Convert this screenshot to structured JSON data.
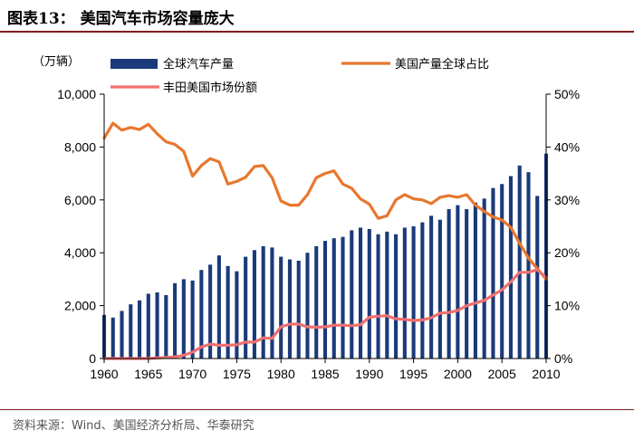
{
  "figure": {
    "title": "图表13：  美国汽车市场容量庞大",
    "source": "资料来源：Wind、美国经济分析局、华泰研究"
  },
  "colors": {
    "bar": "#1a3a7a",
    "share_us": "#e8772e",
    "share_toyota": "#ef7070",
    "axis": "#000000",
    "rule": "#7f1d1d"
  },
  "chart_data": {
    "type": "bar+line",
    "ylabel_left": "（万辆）",
    "left_ticks": [
      "0",
      "2,000",
      "4,000",
      "6,000",
      "8,000",
      "10,000"
    ],
    "right_ticks": [
      "0%",
      "10%",
      "20%",
      "30%",
      "40%",
      "50%"
    ],
    "x_ticks": [
      "1960",
      "1965",
      "1970",
      "1975",
      "1980",
      "1985",
      "1990",
      "1995",
      "2000",
      "2005",
      "2010"
    ],
    "ylim_left": [
      0,
      10000
    ],
    "ylim_right": [
      0,
      0.5
    ],
    "xlim": [
      1960,
      2010
    ],
    "x": [
      1960,
      1961,
      1962,
      1963,
      1964,
      1965,
      1966,
      1967,
      1968,
      1969,
      1970,
      1971,
      1972,
      1973,
      1974,
      1975,
      1976,
      1977,
      1978,
      1979,
      1980,
      1981,
      1982,
      1983,
      1984,
      1985,
      1986,
      1987,
      1988,
      1989,
      1990,
      1991,
      1992,
      1993,
      1994,
      1995,
      1996,
      1997,
      1998,
      1999,
      2000,
      2001,
      2002,
      2003,
      2004,
      2005,
      2006,
      2007,
      2008,
      2009,
      2010
    ],
    "series": [
      {
        "name": "全球汽车产量",
        "kind": "bar",
        "axis": "left",
        "values": [
          1650,
          1550,
          1800,
          2050,
          2200,
          2450,
          2500,
          2400,
          2850,
          3000,
          2950,
          3350,
          3550,
          3900,
          3500,
          3300,
          3850,
          4100,
          4250,
          4200,
          3850,
          3750,
          3700,
          4000,
          4250,
          4450,
          4550,
          4600,
          4850,
          4950,
          4900,
          4700,
          4800,
          4700,
          4950,
          5000,
          5150,
          5400,
          5250,
          5650,
          5800,
          5650,
          5900,
          6050,
          6450,
          6600,
          6900,
          7300,
          7050,
          6150,
          7750
        ]
      },
      {
        "name": "美国产量全球占比",
        "kind": "line",
        "axis": "right",
        "values": [
          0.417,
          0.445,
          0.432,
          0.437,
          0.433,
          0.443,
          0.425,
          0.41,
          0.405,
          0.392,
          0.345,
          0.365,
          0.378,
          0.372,
          0.33,
          0.335,
          0.343,
          0.363,
          0.365,
          0.342,
          0.298,
          0.29,
          0.29,
          0.31,
          0.342,
          0.35,
          0.355,
          0.33,
          0.322,
          0.302,
          0.292,
          0.265,
          0.27,
          0.3,
          0.31,
          0.302,
          0.3,
          0.293,
          0.305,
          0.308,
          0.305,
          0.31,
          0.29,
          0.278,
          0.268,
          0.262,
          0.248,
          0.218,
          0.19,
          0.17,
          0.15
        ]
      },
      {
        "name": "丰田美国市场份额",
        "kind": "line",
        "axis": "right",
        "values": [
          0.0,
          0.0,
          0.0,
          0.0,
          0.0,
          0.0,
          0.001,
          0.002,
          0.003,
          0.006,
          0.012,
          0.022,
          0.027,
          0.025,
          0.025,
          0.026,
          0.031,
          0.031,
          0.039,
          0.038,
          0.06,
          0.065,
          0.065,
          0.06,
          0.059,
          0.06,
          0.063,
          0.063,
          0.062,
          0.064,
          0.078,
          0.08,
          0.081,
          0.075,
          0.074,
          0.072,
          0.073,
          0.077,
          0.086,
          0.087,
          0.091,
          0.1,
          0.105,
          0.11,
          0.12,
          0.13,
          0.145,
          0.163,
          0.163,
          0.168,
          0.153
        ]
      }
    ]
  }
}
